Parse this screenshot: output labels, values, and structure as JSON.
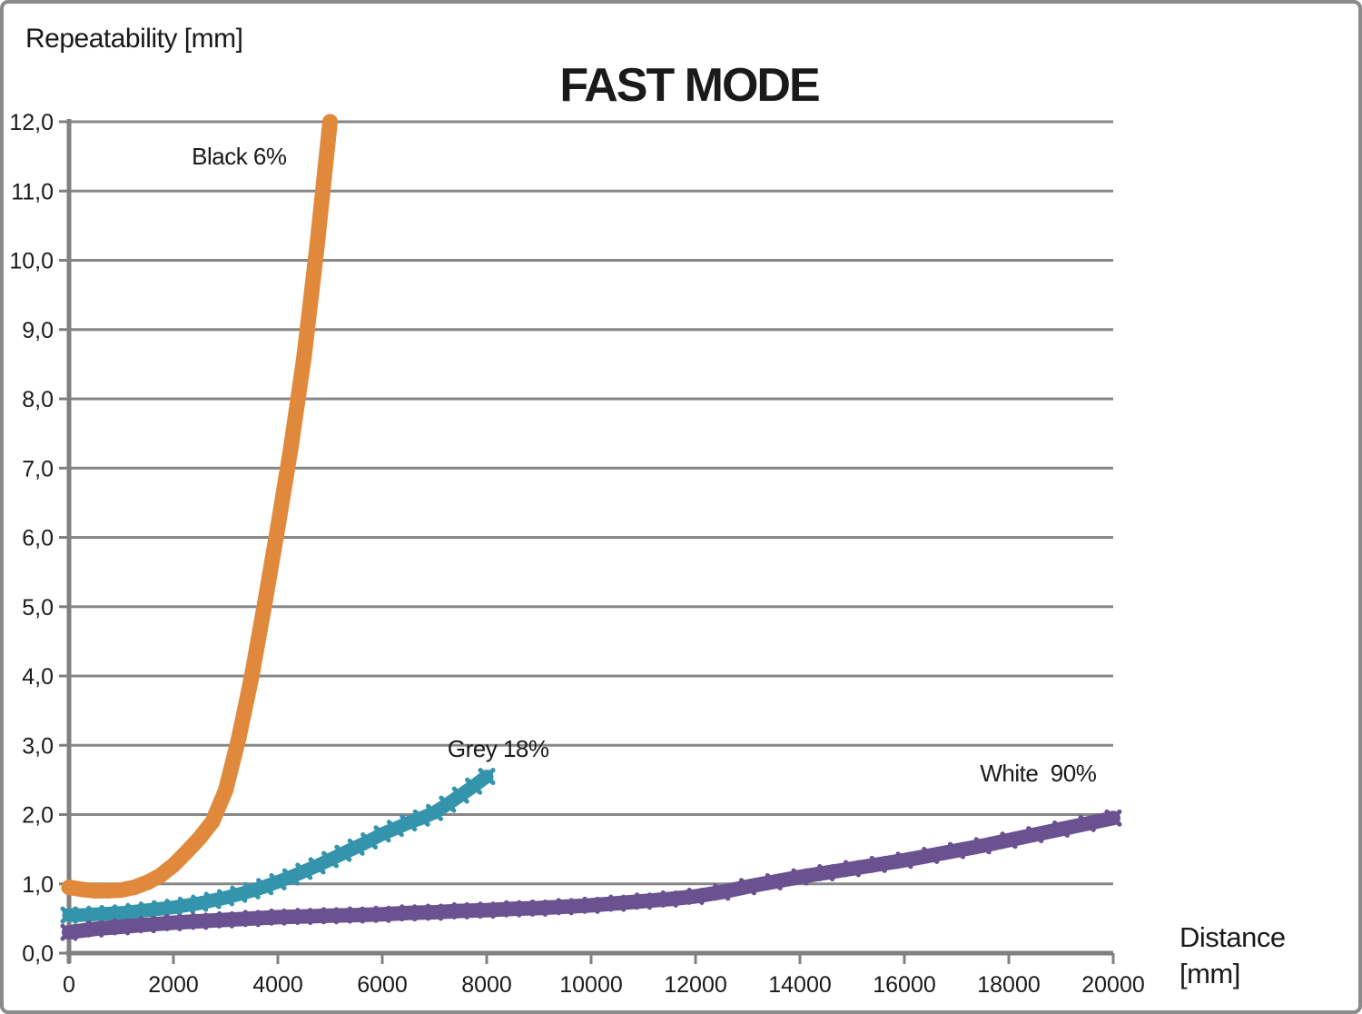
{
  "chart_data": {
    "type": "line",
    "title": "FAST MODE",
    "ylabel": "Repeatability [mm]",
    "xlabel": "Distance [mm]",
    "xlabel_lines": [
      "Distance",
      "[mm]"
    ],
    "xlim": [
      0,
      20000
    ],
    "ylim": [
      0,
      12
    ],
    "grid": "horizontal",
    "legend_position": "none",
    "x_ticks": [
      0,
      2000,
      4000,
      6000,
      8000,
      10000,
      12000,
      14000,
      16000,
      18000,
      20000
    ],
    "x_tick_labels": [
      "0",
      "2000",
      "4000",
      "6000",
      "8000",
      "10000",
      "12000",
      "14000",
      "16000",
      "18000",
      "20000"
    ],
    "y_ticks": [
      0,
      1,
      2,
      3,
      4,
      5,
      6,
      7,
      8,
      9,
      10,
      11,
      12
    ],
    "y_tick_labels": [
      "0,0",
      "1,0",
      "2,0",
      "3,0",
      "4,0",
      "5,0",
      "6,0",
      "7,0",
      "8,0",
      "9,0",
      "10,0",
      "11,0",
      "12,0"
    ],
    "colors": {
      "grid": "#878787",
      "axis": "#808080",
      "text": "#1a1a1a",
      "frame": "#8a8a8a",
      "black6": "#E0893C",
      "grey18": "#3494AB",
      "white90": "#6A518F"
    },
    "series": [
      {
        "id": "black-6",
        "name": "Black 6%",
        "color": "#E0893C",
        "marker": "circle",
        "line_width": 17,
        "marker_size": 8.5,
        "x": [
          0,
          250,
          500,
          750,
          1000,
          1250,
          1500,
          1750,
          2000,
          2250,
          2500,
          2750,
          3000,
          3250,
          3500,
          3750,
          4000,
          4250,
          4500,
          4750,
          5000
        ],
        "y": [
          0.95,
          0.92,
          0.9,
          0.9,
          0.91,
          0.95,
          1.02,
          1.12,
          1.27,
          1.46,
          1.66,
          1.9,
          2.35,
          3.1,
          4.0,
          5.05,
          6.15,
          7.3,
          8.6,
          10.2,
          12.0
        ]
      },
      {
        "id": "grey-18",
        "name": "Grey 18%",
        "color": "#3494AB",
        "marker": "x",
        "line_width": 15,
        "marker_size": 7,
        "x": [
          0,
          250,
          500,
          750,
          1000,
          1250,
          1500,
          1750,
          2000,
          2250,
          2500,
          2750,
          3000,
          3250,
          3500,
          3750,
          4000,
          4250,
          4500,
          4750,
          5000,
          5250,
          5500,
          5750,
          6000,
          6250,
          6500,
          6750,
          7000,
          7250,
          7500,
          7750,
          8000
        ],
        "y": [
          0.55,
          0.55,
          0.56,
          0.57,
          0.58,
          0.6,
          0.62,
          0.64,
          0.66,
          0.69,
          0.72,
          0.76,
          0.8,
          0.85,
          0.9,
          0.96,
          1.03,
          1.1,
          1.18,
          1.26,
          1.35,
          1.44,
          1.53,
          1.62,
          1.72,
          1.8,
          1.88,
          1.95,
          2.03,
          2.15,
          2.28,
          2.41,
          2.55
        ]
      },
      {
        "id": "white-90",
        "name": "White  90%",
        "color": "#6A518F",
        "marker": "x",
        "line_width": 16,
        "marker_size": 7,
        "x": [
          0,
          500,
          1000,
          1500,
          2000,
          2500,
          3000,
          3500,
          4000,
          4500,
          5000,
          5500,
          6000,
          6500,
          7000,
          7500,
          8000,
          8500,
          9000,
          9500,
          10000,
          10500,
          11000,
          11500,
          12000,
          12500,
          13000,
          13500,
          14000,
          14500,
          15000,
          15500,
          16000,
          16500,
          17000,
          17500,
          18000,
          18500,
          19000,
          19500,
          20000
        ],
        "y": [
          0.3,
          0.35,
          0.38,
          0.41,
          0.44,
          0.46,
          0.48,
          0.5,
          0.52,
          0.53,
          0.54,
          0.55,
          0.56,
          0.58,
          0.59,
          0.61,
          0.62,
          0.64,
          0.65,
          0.67,
          0.69,
          0.72,
          0.75,
          0.78,
          0.82,
          0.88,
          0.96,
          1.03,
          1.1,
          1.16,
          1.22,
          1.28,
          1.34,
          1.41,
          1.48,
          1.55,
          1.63,
          1.71,
          1.79,
          1.87,
          1.95
        ]
      }
    ],
    "annotations": [
      {
        "text": "Black 6%",
        "x": 2350,
        "y": 11.5
      },
      {
        "text": "Grey 18%",
        "x": 7250,
        "y": 2.95
      },
      {
        "text": "White  90%",
        "x": 17450,
        "y": 2.6
      }
    ]
  }
}
